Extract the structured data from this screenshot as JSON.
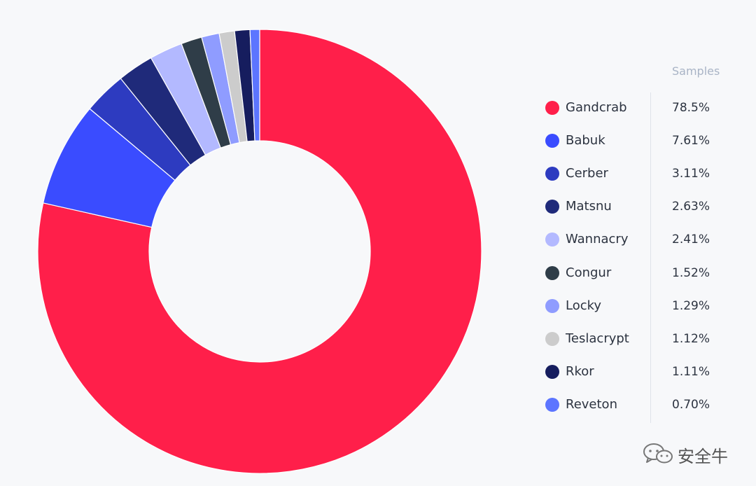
{
  "chart_data": {
    "type": "pie",
    "donut": true,
    "legend_header": "Samples",
    "legend_position": "right",
    "series": [
      {
        "name": "Gandcrab",
        "value": 78.5,
        "label": "78.5%",
        "color": "#ff1f4a"
      },
      {
        "name": "Babuk",
        "value": 7.61,
        "label": "7.61%",
        "color": "#3a4cff"
      },
      {
        "name": "Cerber",
        "value": 3.11,
        "label": "3.11%",
        "color": "#2d3bc0"
      },
      {
        "name": "Matsnu",
        "value": 2.63,
        "label": "2.63%",
        "color": "#1f2a7a"
      },
      {
        "name": "Wannacry",
        "value": 2.41,
        "label": "2.41%",
        "color": "#b3b9ff"
      },
      {
        "name": "Congur",
        "value": 1.52,
        "label": "1.52%",
        "color": "#2f3d48"
      },
      {
        "name": "Locky",
        "value": 1.29,
        "label": "1.29%",
        "color": "#8f9cff"
      },
      {
        "name": "Teslacrypt",
        "value": 1.12,
        "label": "1.12%",
        "color": "#cccccc"
      },
      {
        "name": "Rkor",
        "value": 1.11,
        "label": "1.11%",
        "color": "#161d5e"
      },
      {
        "name": "Reveton",
        "value": 0.7,
        "label": "0.70%",
        "color": "#5c75ff"
      }
    ]
  },
  "watermark": {
    "text": "安全牛",
    "icon": "wechat-icon"
  }
}
